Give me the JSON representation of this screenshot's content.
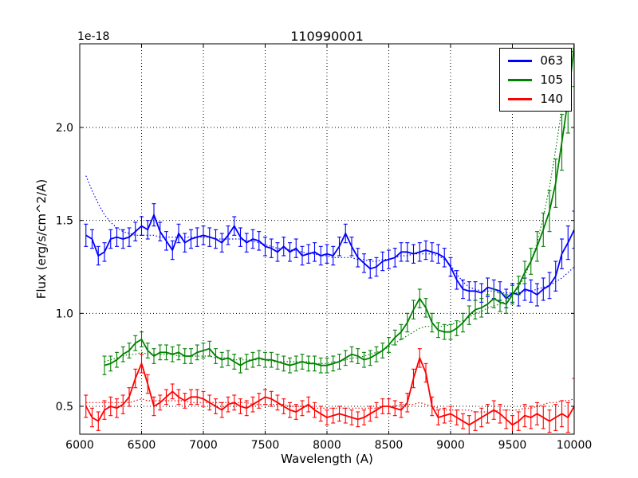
{
  "chart_data": {
    "type": "line",
    "error_bars": true,
    "title": "110990001",
    "xlabel": "Wavelength (A)",
    "ylabel": "Flux (erg/s/cm^2/A)",
    "y_offset_text": "1e-18",
    "xlim": [
      6000,
      10000
    ],
    "ylim": [
      0.35,
      2.45
    ],
    "xticks": [
      6000,
      6500,
      7000,
      7500,
      8000,
      8500,
      9000,
      9500,
      10000
    ],
    "xtick_labels": [
      "6000",
      "6500",
      "7000",
      "7500",
      "8000",
      "8500",
      "9000",
      "9500",
      "10000"
    ],
    "yticks": [
      0.5,
      1.0,
      1.5,
      2.0
    ],
    "ytick_labels": [
      "0.5",
      "1.0",
      "1.5",
      "2.0"
    ],
    "grid": "dotted",
    "legend_position": "upper right",
    "series": [
      {
        "name": "063",
        "color": "#0000ff",
        "x": [
          6050,
          6100,
          6150,
          6200,
          6250,
          6300,
          6350,
          6400,
          6450,
          6500,
          6550,
          6600,
          6650,
          6700,
          6750,
          6800,
          6850,
          6900,
          6950,
          7000,
          7050,
          7100,
          7150,
          7200,
          7250,
          7300,
          7350,
          7400,
          7450,
          7500,
          7550,
          7600,
          7650,
          7700,
          7750,
          7800,
          7850,
          7900,
          7950,
          8000,
          8050,
          8100,
          8150,
          8200,
          8250,
          8300,
          8350,
          8400,
          8450,
          8500,
          8550,
          8600,
          8650,
          8700,
          8750,
          8800,
          8850,
          8900,
          8950,
          9000,
          9050,
          9100,
          9150,
          9200,
          9250,
          9300,
          9350,
          9400,
          9450,
          9500,
          9550,
          9600,
          9650,
          9700,
          9750,
          9800,
          9850,
          9900,
          9950,
          10000
        ],
        "y": [
          1.42,
          1.4,
          1.31,
          1.33,
          1.4,
          1.41,
          1.4,
          1.41,
          1.44,
          1.47,
          1.45,
          1.53,
          1.44,
          1.39,
          1.34,
          1.43,
          1.38,
          1.4,
          1.41,
          1.42,
          1.41,
          1.4,
          1.38,
          1.42,
          1.47,
          1.41,
          1.38,
          1.4,
          1.39,
          1.36,
          1.35,
          1.33,
          1.36,
          1.33,
          1.35,
          1.31,
          1.32,
          1.33,
          1.31,
          1.32,
          1.31,
          1.36,
          1.43,
          1.36,
          1.3,
          1.27,
          1.24,
          1.25,
          1.28,
          1.29,
          1.3,
          1.33,
          1.33,
          1.32,
          1.33,
          1.34,
          1.33,
          1.32,
          1.3,
          1.25,
          1.18,
          1.13,
          1.12,
          1.12,
          1.11,
          1.14,
          1.13,
          1.12,
          1.08,
          1.11,
          1.1,
          1.13,
          1.12,
          1.1,
          1.13,
          1.15,
          1.2,
          1.32,
          1.38,
          1.45
        ],
        "yerr": [
          0.06,
          0.05,
          0.05,
          0.05,
          0.05,
          0.05,
          0.05,
          0.05,
          0.05,
          0.05,
          0.05,
          0.06,
          0.05,
          0.05,
          0.05,
          0.05,
          0.05,
          0.05,
          0.05,
          0.05,
          0.05,
          0.05,
          0.05,
          0.05,
          0.05,
          0.05,
          0.05,
          0.05,
          0.05,
          0.05,
          0.05,
          0.05,
          0.05,
          0.05,
          0.05,
          0.05,
          0.05,
          0.05,
          0.05,
          0.05,
          0.05,
          0.05,
          0.05,
          0.05,
          0.05,
          0.05,
          0.05,
          0.05,
          0.05,
          0.05,
          0.05,
          0.05,
          0.05,
          0.05,
          0.05,
          0.05,
          0.05,
          0.05,
          0.05,
          0.05,
          0.05,
          0.05,
          0.05,
          0.05,
          0.05,
          0.05,
          0.05,
          0.05,
          0.05,
          0.05,
          0.06,
          0.06,
          0.06,
          0.06,
          0.06,
          0.07,
          0.08,
          0.08,
          0.09,
          0.1
        ],
        "model_y": [
          1.74,
          1.66,
          1.59,
          1.53,
          1.49,
          1.46,
          1.44,
          1.43,
          1.42,
          1.42,
          1.42,
          1.42,
          1.41,
          1.41,
          1.41,
          1.41,
          1.41,
          1.41,
          1.41,
          1.41,
          1.41,
          1.4,
          1.4,
          1.4,
          1.4,
          1.4,
          1.39,
          1.39,
          1.38,
          1.37,
          1.36,
          1.35,
          1.35,
          1.34,
          1.34,
          1.33,
          1.32,
          1.32,
          1.31,
          1.31,
          1.3,
          1.3,
          1.3,
          1.3,
          1.29,
          1.29,
          1.28,
          1.28,
          1.29,
          1.29,
          1.3,
          1.31,
          1.31,
          1.32,
          1.32,
          1.32,
          1.32,
          1.31,
          1.29,
          1.26,
          1.21,
          1.17,
          1.14,
          1.13,
          1.12,
          1.12,
          1.12,
          1.11,
          1.11,
          1.11,
          1.11,
          1.12,
          1.12,
          1.13,
          1.14,
          1.15,
          1.17,
          1.19,
          1.22,
          1.25
        ]
      },
      {
        "name": "105",
        "color": "#008000",
        "x": [
          6200,
          6250,
          6300,
          6350,
          6400,
          6450,
          6500,
          6550,
          6600,
          6650,
          6700,
          6750,
          6800,
          6850,
          6900,
          6950,
          7000,
          7050,
          7100,
          7150,
          7200,
          7250,
          7300,
          7350,
          7400,
          7450,
          7500,
          7550,
          7600,
          7650,
          7700,
          7750,
          7800,
          7850,
          7900,
          7950,
          8000,
          8050,
          8100,
          8150,
          8200,
          8250,
          8300,
          8350,
          8400,
          8450,
          8500,
          8550,
          8600,
          8650,
          8700,
          8750,
          8800,
          8850,
          8900,
          8950,
          9000,
          9050,
          9100,
          9150,
          9200,
          9250,
          9300,
          9350,
          9400,
          9450,
          9500,
          9550,
          9600,
          9650,
          9700,
          9750,
          9800,
          9850,
          9900,
          9950,
          10000
        ],
        "y": [
          0.72,
          0.73,
          0.75,
          0.78,
          0.8,
          0.84,
          0.86,
          0.8,
          0.77,
          0.79,
          0.79,
          0.78,
          0.79,
          0.77,
          0.77,
          0.79,
          0.8,
          0.81,
          0.77,
          0.75,
          0.76,
          0.74,
          0.72,
          0.74,
          0.75,
          0.76,
          0.75,
          0.75,
          0.74,
          0.73,
          0.72,
          0.73,
          0.74,
          0.73,
          0.73,
          0.72,
          0.72,
          0.73,
          0.74,
          0.76,
          0.78,
          0.77,
          0.75,
          0.76,
          0.78,
          0.8,
          0.83,
          0.87,
          0.9,
          0.95,
          1.02,
          1.08,
          1.03,
          0.95,
          0.91,
          0.9,
          0.9,
          0.92,
          0.95,
          0.99,
          1.02,
          1.03,
          1.05,
          1.08,
          1.06,
          1.05,
          1.1,
          1.15,
          1.22,
          1.28,
          1.36,
          1.45,
          1.55,
          1.7,
          1.92,
          2.15,
          2.44
        ],
        "yerr": [
          0.05,
          0.04,
          0.04,
          0.04,
          0.04,
          0.04,
          0.04,
          0.04,
          0.04,
          0.04,
          0.04,
          0.04,
          0.04,
          0.04,
          0.04,
          0.04,
          0.04,
          0.04,
          0.04,
          0.04,
          0.04,
          0.04,
          0.04,
          0.04,
          0.04,
          0.04,
          0.04,
          0.04,
          0.04,
          0.04,
          0.04,
          0.04,
          0.04,
          0.04,
          0.04,
          0.04,
          0.04,
          0.04,
          0.04,
          0.04,
          0.04,
          0.04,
          0.04,
          0.04,
          0.04,
          0.04,
          0.04,
          0.04,
          0.04,
          0.05,
          0.05,
          0.05,
          0.05,
          0.05,
          0.04,
          0.04,
          0.04,
          0.04,
          0.05,
          0.05,
          0.05,
          0.05,
          0.05,
          0.05,
          0.05,
          0.05,
          0.05,
          0.05,
          0.06,
          0.07,
          0.08,
          0.09,
          0.11,
          0.13,
          0.15,
          0.18,
          0.22
        ],
        "model_y": [
          0.74,
          0.75,
          0.76,
          0.77,
          0.78,
          0.78,
          0.79,
          0.78,
          0.78,
          0.78,
          0.78,
          0.78,
          0.77,
          0.77,
          0.77,
          0.77,
          0.77,
          0.77,
          0.76,
          0.76,
          0.76,
          0.75,
          0.75,
          0.75,
          0.75,
          0.75,
          0.75,
          0.74,
          0.74,
          0.74,
          0.74,
          0.74,
          0.74,
          0.74,
          0.73,
          0.73,
          0.73,
          0.74,
          0.74,
          0.75,
          0.76,
          0.76,
          0.77,
          0.78,
          0.79,
          0.8,
          0.82,
          0.84,
          0.86,
          0.88,
          0.9,
          0.92,
          0.93,
          0.93,
          0.93,
          0.93,
          0.94,
          0.95,
          0.96,
          0.98,
          1.0,
          1.01,
          1.03,
          1.04,
          1.05,
          1.07,
          1.1,
          1.14,
          1.2,
          1.28,
          1.38,
          1.52,
          1.68,
          1.88,
          2.1,
          2.32,
          2.45
        ]
      },
      {
        "name": "140",
        "color": "#ff0000",
        "x": [
          6050,
          6100,
          6150,
          6200,
          6250,
          6300,
          6350,
          6400,
          6450,
          6500,
          6550,
          6600,
          6650,
          6700,
          6750,
          6800,
          6850,
          6900,
          6950,
          7000,
          7050,
          7100,
          7150,
          7200,
          7250,
          7300,
          7350,
          7400,
          7450,
          7500,
          7550,
          7600,
          7650,
          7700,
          7750,
          7800,
          7850,
          7900,
          7950,
          8000,
          8050,
          8100,
          8150,
          8200,
          8250,
          8300,
          8350,
          8400,
          8450,
          8500,
          8550,
          8600,
          8650,
          8700,
          8750,
          8800,
          8850,
          8900,
          8950,
          9000,
          9050,
          9100,
          9150,
          9200,
          9250,
          9300,
          9350,
          9400,
          9450,
          9500,
          9550,
          9600,
          9650,
          9700,
          9750,
          9800,
          9850,
          9900,
          9950,
          10000
        ],
        "y": [
          0.5,
          0.44,
          0.42,
          0.48,
          0.5,
          0.49,
          0.51,
          0.55,
          0.65,
          0.73,
          0.62,
          0.5,
          0.52,
          0.55,
          0.58,
          0.55,
          0.53,
          0.55,
          0.55,
          0.54,
          0.52,
          0.5,
          0.48,
          0.51,
          0.52,
          0.5,
          0.49,
          0.51,
          0.53,
          0.55,
          0.54,
          0.52,
          0.5,
          0.48,
          0.47,
          0.49,
          0.51,
          0.48,
          0.46,
          0.44,
          0.45,
          0.46,
          0.45,
          0.44,
          0.43,
          0.44,
          0.46,
          0.48,
          0.5,
          0.5,
          0.49,
          0.48,
          0.52,
          0.65,
          0.76,
          0.68,
          0.5,
          0.44,
          0.45,
          0.46,
          0.44,
          0.42,
          0.4,
          0.42,
          0.44,
          0.46,
          0.48,
          0.46,
          0.43,
          0.4,
          0.42,
          0.45,
          0.44,
          0.46,
          0.44,
          0.42,
          0.44,
          0.46,
          0.44,
          0.5
        ],
        "yerr": [
          0.06,
          0.05,
          0.05,
          0.05,
          0.05,
          0.05,
          0.05,
          0.05,
          0.05,
          0.05,
          0.05,
          0.05,
          0.04,
          0.04,
          0.04,
          0.04,
          0.04,
          0.04,
          0.04,
          0.04,
          0.04,
          0.04,
          0.04,
          0.04,
          0.04,
          0.04,
          0.04,
          0.04,
          0.04,
          0.04,
          0.04,
          0.04,
          0.04,
          0.04,
          0.04,
          0.04,
          0.04,
          0.04,
          0.04,
          0.04,
          0.04,
          0.04,
          0.04,
          0.04,
          0.04,
          0.04,
          0.04,
          0.04,
          0.04,
          0.04,
          0.04,
          0.04,
          0.05,
          0.05,
          0.05,
          0.05,
          0.05,
          0.04,
          0.04,
          0.04,
          0.04,
          0.04,
          0.05,
          0.05,
          0.05,
          0.05,
          0.05,
          0.05,
          0.05,
          0.05,
          0.05,
          0.06,
          0.06,
          0.06,
          0.06,
          0.06,
          0.07,
          0.07,
          0.08,
          0.15
        ],
        "model_y": [
          0.52,
          0.52,
          0.52,
          0.52,
          0.52,
          0.52,
          0.52,
          0.52,
          0.53,
          0.54,
          0.53,
          0.53,
          0.53,
          0.53,
          0.53,
          0.53,
          0.53,
          0.52,
          0.52,
          0.52,
          0.52,
          0.52,
          0.52,
          0.52,
          0.52,
          0.52,
          0.52,
          0.51,
          0.51,
          0.51,
          0.51,
          0.51,
          0.51,
          0.5,
          0.5,
          0.5,
          0.5,
          0.49,
          0.49,
          0.49,
          0.49,
          0.49,
          0.49,
          0.49,
          0.49,
          0.49,
          0.49,
          0.49,
          0.5,
          0.5,
          0.5,
          0.51,
          0.51,
          0.51,
          0.52,
          0.51,
          0.5,
          0.49,
          0.48,
          0.48,
          0.48,
          0.48,
          0.48,
          0.47,
          0.47,
          0.47,
          0.47,
          0.48,
          0.48,
          0.48,
          0.48,
          0.49,
          0.49,
          0.5,
          0.51,
          0.52,
          0.52,
          0.53,
          0.53,
          0.54
        ]
      }
    ]
  }
}
